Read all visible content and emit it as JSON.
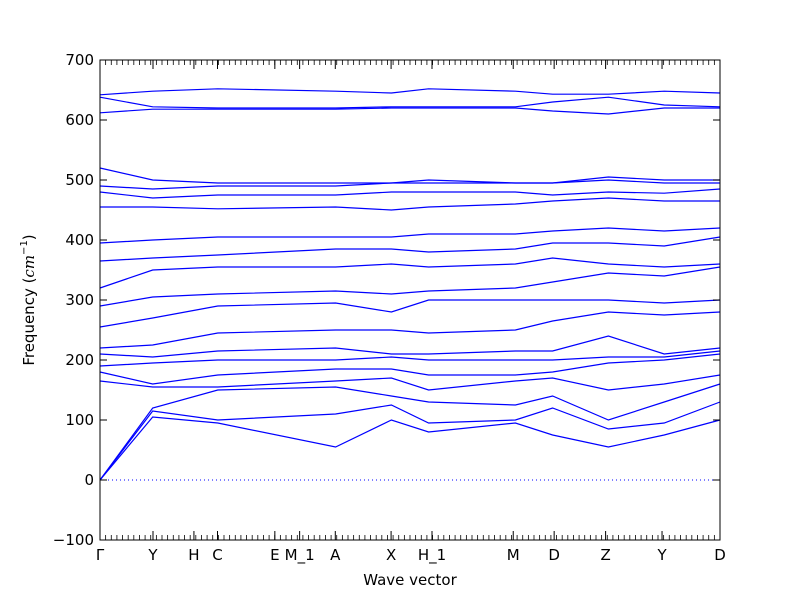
{
  "chart_data": {
    "type": "line",
    "xlabel": "Wave vector",
    "ylabel": "Frequency (cm⁻¹)",
    "ylabel_main": "Frequency (",
    "ylabel_unit": "cm",
    "ylabel_exp": "−1",
    "ylabel_close": ")",
    "ylim": [
      -100,
      700
    ],
    "yticks": [
      -100,
      0,
      100,
      200,
      300,
      400,
      500,
      600,
      700
    ],
    "ytick_labels": [
      "−100",
      "0",
      "100",
      "200",
      "300",
      "400",
      "500",
      "600",
      "700"
    ],
    "xlim": [
      0,
      1
    ],
    "high_symmetry_points": [
      {
        "label": "Γ",
        "x": 0.0
      },
      {
        "label": "Y",
        "x": 0.0855
      },
      {
        "label": "H",
        "x": 0.1515
      },
      {
        "label": "C",
        "x": 0.1895
      },
      {
        "label": "E",
        "x": 0.282
      },
      {
        "label": "M_1",
        "x": 0.322
      },
      {
        "label": "A",
        "x": 0.3795
      },
      {
        "label": "X",
        "x": 0.4695
      },
      {
        "label": "H_1",
        "x": 0.5355
      },
      {
        "label": "M",
        "x": 0.6665
      },
      {
        "label": "D",
        "x": 0.7325
      },
      {
        "label": "Z",
        "x": 0.8155
      },
      {
        "label": "Y",
        "x": 0.9065
      },
      {
        "label": "D",
        "x": 1.0
      }
    ],
    "zero_line": {
      "y": 0,
      "style": "dotted"
    },
    "grid": false,
    "band_color": "#0000ff",
    "series": [
      {
        "x": [
          0.0,
          0.085,
          0.19,
          0.38,
          0.47,
          0.53,
          0.67,
          0.73,
          0.82,
          0.91,
          1.0
        ],
        "y": [
          0,
          105,
          95,
          55,
          100,
          80,
          95,
          75,
          55,
          75,
          100
        ]
      },
      {
        "x": [
          0.0,
          0.085,
          0.19,
          0.38,
          0.47,
          0.53,
          0.67,
          0.73,
          0.82,
          0.91,
          1.0
        ],
        "y": [
          0,
          115,
          100,
          110,
          125,
          95,
          100,
          120,
          85,
          95,
          130
        ]
      },
      {
        "x": [
          0.0,
          0.085,
          0.19,
          0.38,
          0.47,
          0.53,
          0.67,
          0.73,
          0.82,
          0.91,
          1.0
        ],
        "y": [
          0,
          120,
          150,
          155,
          140,
          130,
          125,
          140,
          100,
          130,
          160
        ]
      },
      {
        "x": [
          0.0,
          0.085,
          0.19,
          0.38,
          0.47,
          0.53,
          0.67,
          0.73,
          0.82,
          0.91,
          1.0
        ],
        "y": [
          165,
          155,
          155,
          165,
          170,
          150,
          165,
          170,
          150,
          160,
          175
        ]
      },
      {
        "x": [
          0.0,
          0.085,
          0.19,
          0.38,
          0.47,
          0.53,
          0.67,
          0.73,
          0.82,
          0.91,
          1.0
        ],
        "y": [
          180,
          160,
          175,
          185,
          185,
          175,
          175,
          180,
          195,
          200,
          210
        ]
      },
      {
        "x": [
          0.0,
          0.085,
          0.19,
          0.38,
          0.47,
          0.53,
          0.67,
          0.73,
          0.82,
          0.91,
          1.0
        ],
        "y": [
          190,
          195,
          200,
          200,
          205,
          200,
          200,
          200,
          205,
          205,
          215
        ]
      },
      {
        "x": [
          0.0,
          0.085,
          0.19,
          0.38,
          0.47,
          0.53,
          0.67,
          0.73,
          0.82,
          0.91,
          1.0
        ],
        "y": [
          210,
          205,
          215,
          220,
          210,
          210,
          215,
          215,
          240,
          210,
          220
        ]
      },
      {
        "x": [
          0.0,
          0.085,
          0.19,
          0.38,
          0.47,
          0.53,
          0.67,
          0.73,
          0.82,
          0.91,
          1.0
        ],
        "y": [
          220,
          225,
          245,
          250,
          250,
          245,
          250,
          265,
          280,
          275,
          280
        ]
      },
      {
        "x": [
          0.0,
          0.085,
          0.19,
          0.38,
          0.47,
          0.53,
          0.67,
          0.73,
          0.82,
          0.91,
          1.0
        ],
        "y": [
          255,
          270,
          290,
          295,
          280,
          300,
          300,
          300,
          300,
          295,
          300
        ]
      },
      {
        "x": [
          0.0,
          0.085,
          0.19,
          0.38,
          0.47,
          0.53,
          0.67,
          0.73,
          0.82,
          0.91,
          1.0
        ],
        "y": [
          290,
          305,
          310,
          315,
          310,
          315,
          320,
          330,
          345,
          340,
          355
        ]
      },
      {
        "x": [
          0.0,
          0.085,
          0.19,
          0.38,
          0.47,
          0.53,
          0.67,
          0.73,
          0.82,
          0.91,
          1.0
        ],
        "y": [
          320,
          350,
          355,
          355,
          360,
          355,
          360,
          370,
          360,
          355,
          360
        ]
      },
      {
        "x": [
          0.0,
          0.085,
          0.19,
          0.38,
          0.47,
          0.53,
          0.67,
          0.73,
          0.82,
          0.91,
          1.0
        ],
        "y": [
          365,
          370,
          375,
          385,
          385,
          380,
          385,
          395,
          395,
          390,
          405
        ]
      },
      {
        "x": [
          0.0,
          0.085,
          0.19,
          0.38,
          0.47,
          0.53,
          0.67,
          0.73,
          0.82,
          0.91,
          1.0
        ],
        "y": [
          395,
          400,
          405,
          405,
          405,
          410,
          410,
          415,
          420,
          415,
          420
        ]
      },
      {
        "x": [
          0.0,
          0.085,
          0.19,
          0.38,
          0.47,
          0.53,
          0.67,
          0.73,
          0.82,
          0.91,
          1.0
        ],
        "y": [
          455,
          455,
          452,
          455,
          450,
          455,
          460,
          465,
          470,
          465,
          465
        ]
      },
      {
        "x": [
          0.0,
          0.085,
          0.19,
          0.38,
          0.47,
          0.53,
          0.67,
          0.73,
          0.82,
          0.91,
          1.0
        ],
        "y": [
          480,
          470,
          475,
          475,
          480,
          480,
          480,
          475,
          480,
          478,
          485
        ]
      },
      {
        "x": [
          0.0,
          0.085,
          0.19,
          0.38,
          0.47,
          0.53,
          0.67,
          0.73,
          0.82,
          0.91,
          1.0
        ],
        "y": [
          490,
          485,
          490,
          490,
          495,
          495,
          495,
          495,
          500,
          495,
          495
        ]
      },
      {
        "x": [
          0.0,
          0.085,
          0.19,
          0.38,
          0.47,
          0.53,
          0.67,
          0.73,
          0.82,
          0.91,
          1.0
        ],
        "y": [
          520,
          500,
          495,
          495,
          495,
          500,
          495,
          495,
          505,
          500,
          500
        ]
      },
      {
        "x": [
          0.0,
          0.085,
          0.19,
          0.38,
          0.47,
          0.53,
          0.67,
          0.73,
          0.82,
          0.91,
          1.0
        ],
        "y": [
          612,
          618,
          618,
          618,
          620,
          620,
          620,
          615,
          610,
          620,
          620
        ]
      },
      {
        "x": [
          0.0,
          0.085,
          0.19,
          0.38,
          0.47,
          0.53,
          0.67,
          0.73,
          0.82,
          0.91,
          1.0
        ],
        "y": [
          638,
          622,
          620,
          620,
          622,
          622,
          622,
          630,
          638,
          625,
          622
        ]
      },
      {
        "x": [
          0.0,
          0.085,
          0.19,
          0.38,
          0.47,
          0.53,
          0.67,
          0.73,
          0.82,
          0.91,
          1.0
        ],
        "y": [
          642,
          648,
          652,
          648,
          645,
          652,
          648,
          643,
          643,
          648,
          645
        ]
      }
    ]
  }
}
